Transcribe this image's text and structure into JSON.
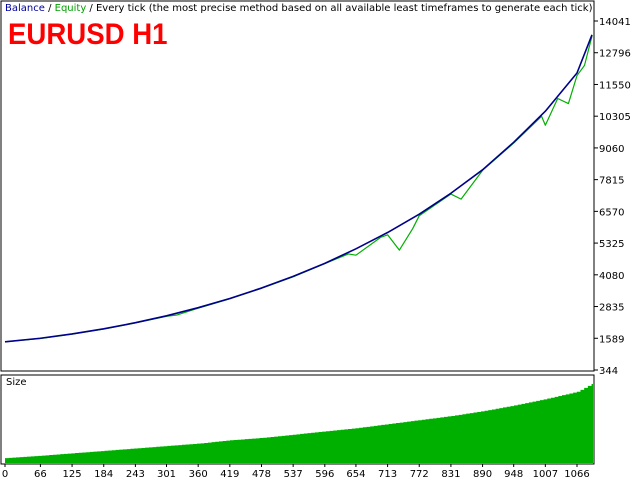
{
  "legend": {
    "balance": "Balance",
    "sep1": " / ",
    "equity": "Equity",
    "rest": " / Every tick (the most precise method based on all available least timeframes to generate each tick)"
  },
  "title": "EURUSD H1",
  "size_panel_label": "Size",
  "colors": {
    "balance": "#00008b",
    "equity": "#00b000",
    "size_fill": "#00b000",
    "title": "#ff0000",
    "grid": "#000000"
  },
  "chart_data": [
    {
      "type": "line",
      "y_ticks": [
        "14041",
        "12796",
        "11550",
        "10305",
        "9060",
        "7815",
        "6570",
        "5325",
        "4080",
        "2835",
        "1589",
        "344"
      ],
      "ylim": [
        344,
        14041
      ],
      "x_ticks": [
        "0",
        "66",
        "125",
        "184",
        "243",
        "301",
        "360",
        "419",
        "478",
        "537",
        "596",
        "654",
        "713",
        "772",
        "831",
        "890",
        "948",
        "1007",
        "1066"
      ],
      "xlim": [
        0,
        1100
      ],
      "series": [
        {
          "name": "Balance",
          "x": [
            0,
            66,
            125,
            184,
            243,
            301,
            360,
            419,
            478,
            537,
            596,
            654,
            713,
            772,
            831,
            890,
            948,
            1007,
            1066,
            1100
          ],
          "values": [
            1450,
            1590,
            1760,
            1960,
            2200,
            2470,
            2790,
            3150,
            3560,
            4020,
            4530,
            5100,
            5740,
            6460,
            7280,
            8200,
            9280,
            10500,
            12000,
            13500
          ]
        },
        {
          "name": "Equity",
          "x": [
            0,
            66,
            125,
            184,
            243,
            301,
            320,
            360,
            419,
            478,
            537,
            596,
            640,
            654,
            700,
            713,
            735,
            760,
            772,
            831,
            850,
            890,
            948,
            1000,
            1007,
            1030,
            1050,
            1066,
            1080,
            1100
          ],
          "values": [
            1450,
            1580,
            1750,
            1950,
            2190,
            2450,
            2500,
            2770,
            3140,
            3550,
            4000,
            4520,
            4900,
            4850,
            5550,
            5650,
            5050,
            5900,
            6400,
            7250,
            7050,
            8180,
            9250,
            10300,
            9950,
            11000,
            10800,
            11900,
            12300,
            13450
          ]
        }
      ]
    },
    {
      "type": "area",
      "series": [
        {
          "name": "Size",
          "x": [
            0,
            66,
            125,
            184,
            243,
            301,
            360,
            419,
            478,
            537,
            596,
            654,
            713,
            772,
            831,
            890,
            948,
            1007,
            1066,
            1100
          ],
          "values": [
            0.06,
            0.09,
            0.12,
            0.15,
            0.18,
            0.21,
            0.24,
            0.28,
            0.31,
            0.35,
            0.39,
            0.43,
            0.48,
            0.53,
            0.58,
            0.64,
            0.71,
            0.79,
            0.88,
            1.0
          ]
        }
      ]
    }
  ]
}
